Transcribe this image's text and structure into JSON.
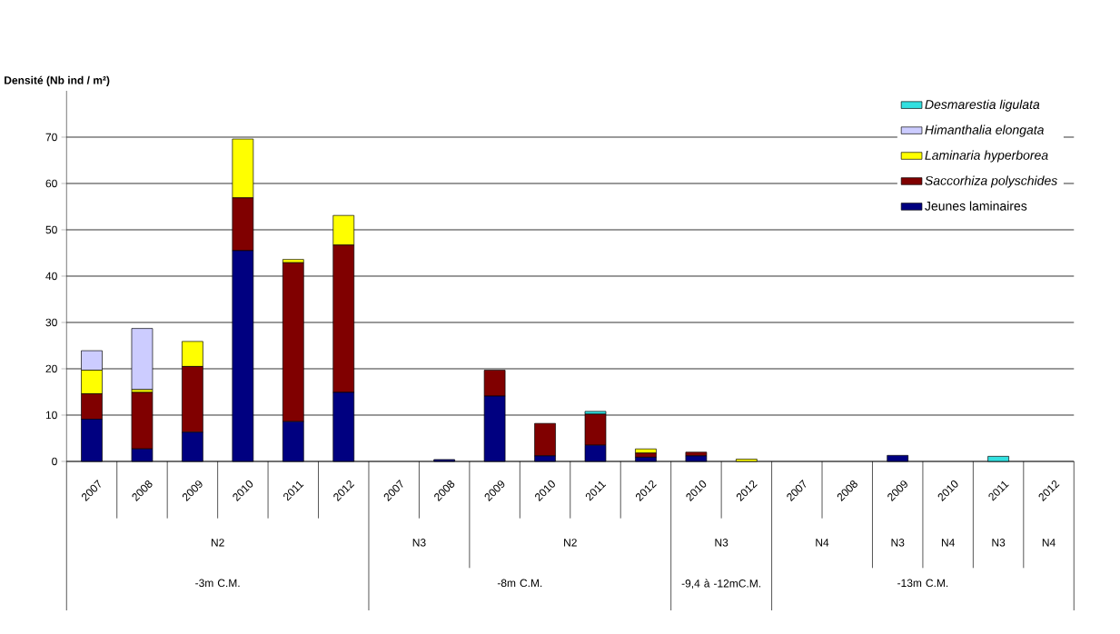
{
  "chart_data": {
    "type": "bar",
    "stacked": true,
    "ylabel": "Densité (Nb ind / m²)",
    "categories": [
      "2007",
      "2008",
      "2009",
      "2010",
      "2011",
      "2012",
      "2007",
      "2008",
      "2009",
      "2010",
      "2011",
      "2012",
      "2010",
      "2012",
      "2007",
      "2008",
      "2009",
      "2010",
      "2011",
      "2012"
    ],
    "series": [
      {
        "name": "Jeunes laminaires",
        "color": "#000080",
        "values": [
          9.1,
          2.7,
          6.3,
          45.5,
          8.6,
          14.9,
          0,
          0.4,
          14.1,
          1.2,
          3.5,
          0.9,
          1.2,
          0,
          0,
          0,
          1.3,
          0,
          0,
          0
        ]
      },
      {
        "name": "*Saccorhiza polyschides*",
        "color": "#800000",
        "values": [
          5.5,
          12.2,
          14.2,
          11.4,
          34.3,
          31.8,
          0,
          0,
          5.6,
          7.0,
          6.7,
          0.9,
          0.8,
          0,
          0,
          0,
          0,
          0,
          0,
          0
        ]
      },
      {
        "name": "*Laminaria hyperborea*",
        "color": "#ffff00",
        "values": [
          5.1,
          0.6,
          5.4,
          12.7,
          0.7,
          6.4,
          0,
          0,
          0,
          0,
          0,
          0.9,
          0,
          0.5,
          0,
          0,
          0,
          0,
          0,
          0
        ]
      },
      {
        "name": "*Himanthalia elongata*",
        "color": "#ccccff",
        "values": [
          4.2,
          13.2,
          0,
          0,
          0,
          0,
          0,
          0,
          0,
          0,
          0,
          0,
          0,
          0,
          0,
          0,
          0,
          0,
          0,
          0
        ]
      },
      {
        "name": "*Desmarestia ligulata*",
        "color": "#33e0e0",
        "values": [
          0,
          0,
          0,
          0,
          0,
          0,
          0,
          0,
          0,
          0,
          0.6,
          0,
          0,
          0,
          0,
          0,
          0,
          0,
          1.1,
          0
        ]
      }
    ],
    "ylim": [
      0,
      80
    ],
    "yticks": [
      0,
      10,
      20,
      30,
      40,
      50,
      60,
      70
    ],
    "grid": "y",
    "legend": "top right",
    "annotations": [
      "N2",
      "N3",
      "N2",
      "N3",
      "N4",
      "N3",
      "N4",
      "N3",
      "N4",
      "-3m C.M.",
      "-8m C.M.",
      "-9,4 à -12mC.M.",
      "-13m C.M."
    ]
  }
}
